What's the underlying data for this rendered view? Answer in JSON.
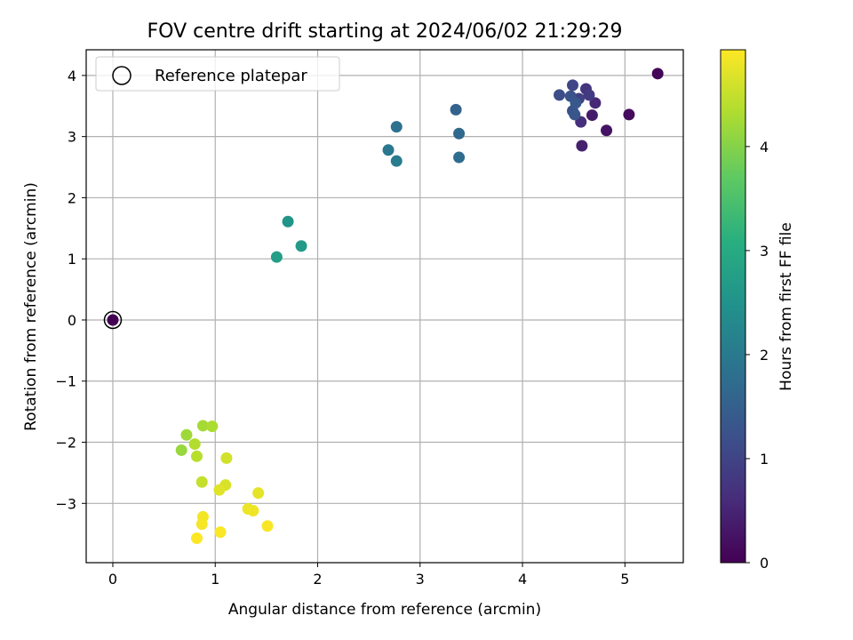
{
  "chart_data": {
    "type": "scatter",
    "title": "FOV centre drift starting at 2024/06/02 21:29:29",
    "xlabel": "Angular distance from reference (arcmin)",
    "ylabel": "Rotation from reference (arcmin)",
    "colorbar_label": "Hours from first FF file",
    "xlim": [
      -0.26,
      5.57
    ],
    "ylim": [
      -3.97,
      4.42
    ],
    "clim": [
      0,
      4.93
    ],
    "xticks": [
      0,
      1,
      2,
      3,
      4,
      5
    ],
    "yticks": [
      -3,
      -2,
      -1,
      0,
      1,
      2,
      3,
      4
    ],
    "cticks": [
      0,
      1,
      2,
      3,
      4
    ],
    "grid": true,
    "colormap": "viridis",
    "legend": {
      "position": "top-left",
      "entries": [
        {
          "label": "Reference platepar",
          "marker": "open-circle"
        }
      ]
    },
    "reference_point": {
      "x": 0,
      "y": 0
    },
    "points": [
      {
        "x": 5.32,
        "y": 4.03,
        "c": 0.05
      },
      {
        "x": 5.04,
        "y": 3.36,
        "c": 0.15
      },
      {
        "x": 4.82,
        "y": 3.1,
        "c": 0.25
      },
      {
        "x": 4.68,
        "y": 3.35,
        "c": 0.35
      },
      {
        "x": 4.58,
        "y": 2.85,
        "c": 0.45
      },
      {
        "x": 4.71,
        "y": 3.55,
        "c": 0.55
      },
      {
        "x": 4.57,
        "y": 3.24,
        "c": 0.65
      },
      {
        "x": 4.62,
        "y": 3.78,
        "c": 0.75
      },
      {
        "x": 4.65,
        "y": 3.68,
        "c": 0.85
      },
      {
        "x": 4.55,
        "y": 3.62,
        "c": 0.95
      },
      {
        "x": 4.49,
        "y": 3.84,
        "c": 1.05
      },
      {
        "x": 4.36,
        "y": 3.68,
        "c": 1.15
      },
      {
        "x": 4.49,
        "y": 3.42,
        "c": 1.2
      },
      {
        "x": 4.47,
        "y": 3.66,
        "c": 1.25
      },
      {
        "x": 4.51,
        "y": 3.36,
        "c": 1.3
      },
      {
        "x": 4.52,
        "y": 3.55,
        "c": 1.35
      },
      {
        "x": 3.35,
        "y": 3.44,
        "c": 1.55
      },
      {
        "x": 3.38,
        "y": 3.05,
        "c": 1.65
      },
      {
        "x": 3.38,
        "y": 2.66,
        "c": 1.75
      },
      {
        "x": 2.77,
        "y": 3.16,
        "c": 1.85
      },
      {
        "x": 2.69,
        "y": 2.78,
        "c": 1.95
      },
      {
        "x": 2.77,
        "y": 2.6,
        "c": 2.05
      },
      {
        "x": 1.71,
        "y": 1.61,
        "c": 2.55
      },
      {
        "x": 1.84,
        "y": 1.21,
        "c": 2.65
      },
      {
        "x": 1.6,
        "y": 1.03,
        "c": 2.75
      },
      {
        "x": 0.67,
        "y": -2.13,
        "c": 4.15
      },
      {
        "x": 0.72,
        "y": -1.88,
        "c": 4.2
      },
      {
        "x": 0.88,
        "y": -1.73,
        "c": 4.25
      },
      {
        "x": 0.97,
        "y": -1.74,
        "c": 4.3
      },
      {
        "x": 0.8,
        "y": -2.03,
        "c": 4.35
      },
      {
        "x": 0.82,
        "y": -2.23,
        "c": 4.4
      },
      {
        "x": 0.87,
        "y": -2.65,
        "c": 4.5
      },
      {
        "x": 1.11,
        "y": -2.26,
        "c": 4.6
      },
      {
        "x": 1.1,
        "y": -2.7,
        "c": 4.65
      },
      {
        "x": 1.04,
        "y": -2.78,
        "c": 4.7
      },
      {
        "x": 1.42,
        "y": -2.83,
        "c": 4.75
      },
      {
        "x": 1.32,
        "y": -3.09,
        "c": 4.8
      },
      {
        "x": 1.37,
        "y": -3.12,
        "c": 4.82
      },
      {
        "x": 0.88,
        "y": -3.22,
        "c": 4.85
      },
      {
        "x": 0.87,
        "y": -3.34,
        "c": 4.87
      },
      {
        "x": 1.51,
        "y": -3.37,
        "c": 4.89
      },
      {
        "x": 1.05,
        "y": -3.47,
        "c": 4.91
      },
      {
        "x": 0.82,
        "y": -3.57,
        "c": 4.93
      }
    ]
  }
}
